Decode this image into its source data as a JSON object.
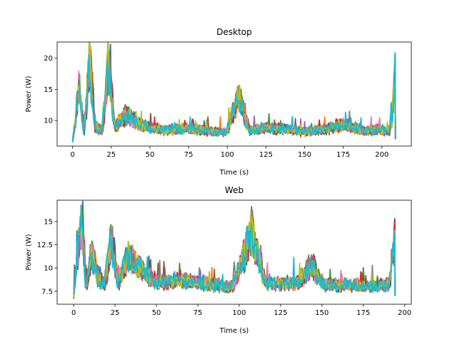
{
  "chart_data": [
    {
      "type": "line",
      "title": "Desktop",
      "xlabel": "Time (s)",
      "ylabel": "Power (W)",
      "xlim": [
        -10,
        219
      ],
      "ylim": [
        5.9,
        22.6
      ],
      "xticks": [
        0,
        25,
        50,
        75,
        100,
        125,
        150,
        175,
        200
      ],
      "yticks": [
        10,
        15,
        20
      ],
      "grid": false,
      "series_count": 10,
      "keypoints_x": [
        0,
        3,
        5,
        8,
        12,
        15,
        20,
        24,
        28,
        35,
        45,
        60,
        75,
        90,
        100,
        108,
        115,
        125,
        140,
        150,
        165,
        175,
        190,
        200,
        206,
        208.5
      ],
      "keypoints_y": [
        6.7,
        12.5,
        16.5,
        8.0,
        22.0,
        9.5,
        8.5,
        21.5,
        9.0,
        11.5,
        9.5,
        8.6,
        8.9,
        8.4,
        8.2,
        15.2,
        8.4,
        9.0,
        8.7,
        8.3,
        8.8,
        9.6,
        8.5,
        8.7,
        8.3,
        19.5
      ]
    },
    {
      "type": "line",
      "title": "Web",
      "xlabel": "Time (s)",
      "ylabel": "Power (W)",
      "xlim": [
        -10,
        204
      ],
      "ylim": [
        6.1,
        17.3
      ],
      "xticks": [
        0,
        25,
        50,
        75,
        100,
        125,
        150,
        175,
        200
      ],
      "yticks": [
        7.5,
        10.0,
        12.5,
        15.0
      ],
      "grid": false,
      "series_count": 10,
      "keypoints_x": [
        0,
        2,
        4,
        7,
        10,
        14,
        18,
        22,
        26,
        32,
        42,
        50,
        65,
        80,
        95,
        107,
        115,
        125,
        135,
        143,
        150,
        165,
        180,
        190,
        194
      ],
      "keypoints_y": [
        6.6,
        12.0,
        16.8,
        8.0,
        12.5,
        9.0,
        8.5,
        14.2,
        8.4,
        12.0,
        10.0,
        8.6,
        8.8,
        8.4,
        8.0,
        14.8,
        8.5,
        8.4,
        8.6,
        10.9,
        8.2,
        8.3,
        8.0,
        8.4,
        14.1
      ]
    }
  ],
  "colors": [
    "#1f77b4",
    "#ff7f0e",
    "#2ca02c",
    "#d62728",
    "#9467bd",
    "#8c564b",
    "#e377c2",
    "#7f7f7f",
    "#bcbd22",
    "#17becf"
  ]
}
